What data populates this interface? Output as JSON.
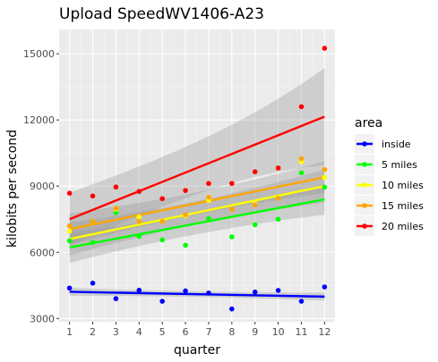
{
  "chart_data": {
    "type": "scatter",
    "title": "Upload SpeedWV1406-A23",
    "xlabel": "quarter",
    "ylabel": "kilobits per second",
    "x_ticks": [
      "1",
      "2",
      "3",
      "4",
      "5",
      "6",
      "7",
      "8",
      "9",
      "10",
      "11",
      "12"
    ],
    "y_ticks": [
      "3000",
      "6000",
      "9000",
      "12000",
      "15000"
    ],
    "xlim": [
      0.55,
      12.45
    ],
    "ylim": [
      2850,
      16100
    ],
    "grid": true,
    "legend": {
      "title": "area",
      "placement": "right"
    },
    "series": [
      {
        "name": "inside",
        "color": "#0000ff",
        "x": [
          1,
          2,
          3,
          4,
          5,
          6,
          7,
          8,
          9,
          10,
          11,
          12
        ],
        "y": [
          4380,
          4600,
          3900,
          4280,
          3780,
          4250,
          4150,
          3430,
          4200,
          4270,
          3780,
          4430
        ],
        "fit": [
          4210,
          3990
        ],
        "ci_halfwidth": [
          180,
          180
        ]
      },
      {
        "name": "5 miles",
        "color": "#00ff00",
        "x": [
          1,
          2,
          3,
          4,
          5,
          6,
          7,
          8,
          9,
          10,
          11,
          12
        ],
        "y": [
          6520,
          6450,
          7800,
          6720,
          6560,
          6320,
          7530,
          6700,
          7250,
          7500,
          9600,
          8950
        ],
        "fit": [
          6220,
          8400
        ],
        "ci_halfwidth": [
          700,
          700
        ]
      },
      {
        "name": "10 miles",
        "color": "#ffff00",
        "x": [
          1,
          2,
          3,
          4,
          5,
          6,
          7,
          8,
          9,
          10,
          11,
          12
        ],
        "y": [
          6950,
          7400,
          7950,
          7600,
          7400,
          7650,
          8350,
          7950,
          8200,
          8450,
          10100,
          9400
        ],
        "fit": [
          6600,
          9000
        ],
        "ci_halfwidth": [
          750,
          750
        ]
      },
      {
        "name": "15 miles",
        "color": "#ffa500",
        "x": [
          1,
          2,
          3,
          4,
          5,
          6,
          7,
          8,
          9,
          10,
          11,
          12
        ],
        "y": [
          7200,
          7400,
          8000,
          7400,
          7400,
          7700,
          8500,
          7950,
          8150,
          8450,
          10250,
          9750
        ],
        "fit": [
          7050,
          9400
        ],
        "ci_halfwidth": [
          720,
          720
        ]
      },
      {
        "name": "20 miles",
        "color": "#ff0000",
        "x": [
          1,
          2,
          3,
          4,
          5,
          6,
          7,
          8,
          9,
          10,
          11,
          12
        ],
        "y": [
          8680,
          8550,
          8960,
          8760,
          8430,
          8800,
          9120,
          9120,
          9650,
          9820,
          12600,
          15250
        ],
        "fit": [
          7500,
          12150
        ],
        "ci_halfwidth": [
          1200,
          2200
        ]
      }
    ]
  }
}
